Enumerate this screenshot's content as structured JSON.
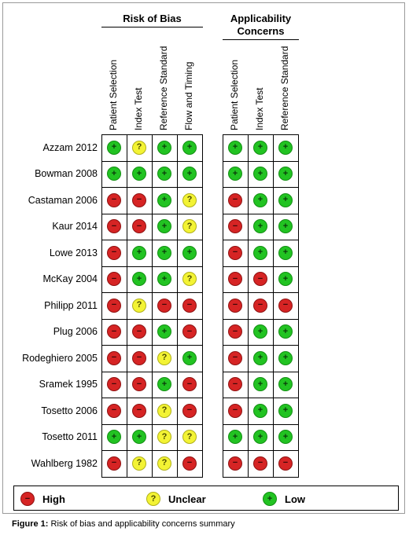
{
  "chart_data": {
    "type": "table",
    "groups": [
      {
        "title": "Risk of Bias",
        "columns": [
          "Patient Selection",
          "Index Test",
          "Reference Standard",
          "Flow and Timing"
        ]
      },
      {
        "title": "Applicability Concerns",
        "columns": [
          "Patient Selection",
          "Index Test",
          "Reference Standard"
        ]
      }
    ],
    "studies": [
      {
        "name": "Azzam 2012",
        "risk": [
          "low",
          "unclear",
          "low",
          "low"
        ],
        "applicability": [
          "low",
          "low",
          "low"
        ]
      },
      {
        "name": "Bowman 2008",
        "risk": [
          "low",
          "low",
          "low",
          "low"
        ],
        "applicability": [
          "low",
          "low",
          "low"
        ]
      },
      {
        "name": "Castaman 2006",
        "risk": [
          "high",
          "high",
          "low",
          "unclear"
        ],
        "applicability": [
          "high",
          "low",
          "low"
        ]
      },
      {
        "name": "Kaur 2014",
        "risk": [
          "high",
          "high",
          "low",
          "unclear"
        ],
        "applicability": [
          "high",
          "low",
          "low"
        ]
      },
      {
        "name": "Lowe 2013",
        "risk": [
          "high",
          "low",
          "low",
          "low"
        ],
        "applicability": [
          "high",
          "low",
          "low"
        ]
      },
      {
        "name": "McKay 2004",
        "risk": [
          "high",
          "low",
          "low",
          "unclear"
        ],
        "applicability": [
          "high",
          "high",
          "low"
        ]
      },
      {
        "name": "Philipp 2011",
        "risk": [
          "high",
          "unclear",
          "high",
          "high"
        ],
        "applicability": [
          "high",
          "high",
          "high"
        ]
      },
      {
        "name": "Plug 2006",
        "risk": [
          "high",
          "high",
          "low",
          "high"
        ],
        "applicability": [
          "high",
          "low",
          "low"
        ]
      },
      {
        "name": "Rodeghiero 2005",
        "risk": [
          "high",
          "high",
          "unclear",
          "low"
        ],
        "applicability": [
          "high",
          "low",
          "low"
        ]
      },
      {
        "name": "Sramek 1995",
        "risk": [
          "high",
          "high",
          "low",
          "high"
        ],
        "applicability": [
          "high",
          "low",
          "low"
        ]
      },
      {
        "name": "Tosetto 2006",
        "risk": [
          "high",
          "high",
          "unclear",
          "high"
        ],
        "applicability": [
          "high",
          "low",
          "low"
        ]
      },
      {
        "name": "Tosetto 2011",
        "risk": [
          "low",
          "low",
          "unclear",
          "unclear"
        ],
        "applicability": [
          "low",
          "low",
          "low"
        ]
      },
      {
        "name": "Wahlberg 1982",
        "risk": [
          "high",
          "unclear",
          "unclear",
          "high"
        ],
        "applicability": [
          "high",
          "high",
          "high"
        ]
      }
    ],
    "legend": [
      {
        "key": "high",
        "label": "High",
        "symbol": "−",
        "color": "#d62424"
      },
      {
        "key": "unclear",
        "label": "Unclear",
        "symbol": "?",
        "color": "#f3f334"
      },
      {
        "key": "low",
        "label": "Low",
        "symbol": "+",
        "color": "#22c322"
      }
    ]
  },
  "caption": {
    "label": "Figure 1:",
    "text": " Risk of bias and applicability concerns summary"
  }
}
